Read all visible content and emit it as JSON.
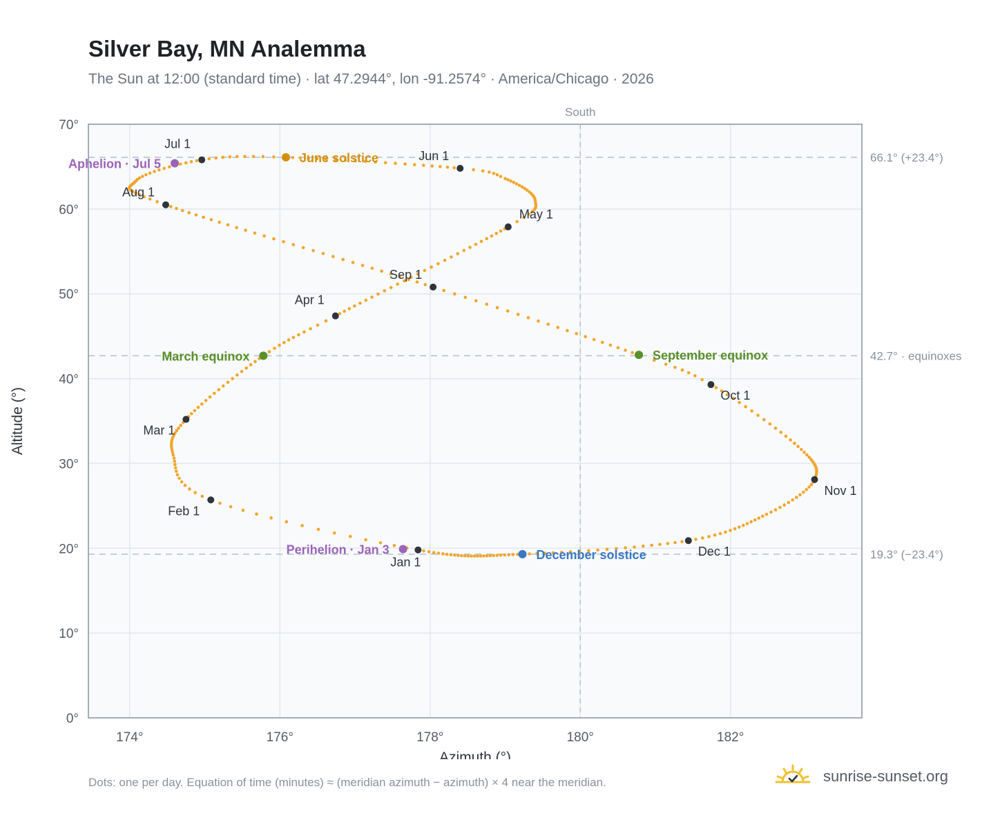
{
  "header": {
    "title": "Silver Bay, MN Analemma",
    "subtitle": "The Sun at 12:00 (standard time) · lat 47.2944°, lon -91.2574° · America/Chicago · 2026"
  },
  "footer": {
    "note": "Dots: one per day. Equation of time (minutes) ≈ (meridian azimuth − azimuth) × 4 near the meridian.",
    "brand": "sunrise-sunset.org",
    "brand_icon": "sun-check-icon"
  },
  "colors": {
    "path": "#f2a52c",
    "month_dot": "#2f343b",
    "solstice_june": "#d4900d",
    "equinox": "#5a8f29",
    "solstice_december": "#3a78c2",
    "apsis": "#9b64b8",
    "plot_bg": "#f8fafc",
    "grid": "#e3e7ec",
    "frame": "#9aa5b3",
    "ref_line": "#b4bfca"
  },
  "chart_data": {
    "type": "scatter",
    "xlabel": "Azimuth (°)",
    "ylabel": "Altitude (°)",
    "xlim": [
      173.45,
      183.75
    ],
    "ylim": [
      0,
      70
    ],
    "xticks": [
      174,
      176,
      178,
      180,
      182
    ],
    "xtick_labels": [
      "174°",
      "176°",
      "178°",
      "180°",
      "182°"
    ],
    "yticks": [
      0,
      10,
      20,
      30,
      40,
      50,
      60,
      70
    ],
    "ytick_labels": [
      "0°",
      "10°",
      "20°",
      "30°",
      "40°",
      "50°",
      "60°",
      "70°"
    ],
    "grid": true,
    "meridian": {
      "azimuth": 180,
      "label": "South"
    },
    "reference_lines": [
      {
        "altitude": 66.1,
        "label": "66.1° (+23.4°)"
      },
      {
        "altitude": 42.7,
        "label": "42.7° · equinoxes"
      },
      {
        "altitude": 19.3,
        "label": "19.3° (−23.4°)"
      }
    ],
    "path_anchors": [
      [
        17.0,
        177.84,
        19.8
      ],
      [
        32.0,
        175.08,
        25.7
      ],
      [
        45.0,
        174.58,
        31.0
      ],
      [
        60.0,
        174.75,
        35.2
      ],
      [
        79.0,
        175.78,
        42.7
      ],
      [
        91.0,
        176.74,
        47.4
      ],
      [
        121.0,
        179.04,
        57.9
      ],
      [
        131.0,
        179.4,
        61.0
      ],
      [
        145.0,
        179.0,
        63.6
      ],
      [
        152.0,
        178.4,
        64.8
      ],
      [
        172.0,
        176.08,
        66.1
      ],
      [
        182.0,
        174.96,
        65.8
      ],
      [
        197.0,
        174.08,
        63.3
      ],
      [
        213.0,
        174.48,
        60.5
      ],
      [
        244.0,
        178.04,
        50.8
      ],
      [
        266.0,
        180.78,
        42.8
      ],
      [
        274.0,
        181.74,
        39.3
      ],
      [
        290.0,
        182.9,
        32.0
      ],
      [
        305.0,
        183.12,
        28.1
      ],
      [
        319.0,
        182.48,
        24.0
      ],
      [
        335.0,
        181.44,
        20.9
      ],
      [
        355.0,
        179.23,
        19.3
      ],
      [
        382.0,
        177.84,
        19.8
      ]
    ],
    "path_anchor_note": "[day-of-year, azimuth, altitude]",
    "month_points": [
      {
        "label": "Jan 1",
        "az": 177.84,
        "alt": 19.8,
        "anchor": "start"
      },
      {
        "label": "Feb 1",
        "az": 175.08,
        "alt": 25.7,
        "anchor": "end"
      },
      {
        "label": "Mar 1",
        "az": 174.75,
        "alt": 35.2,
        "anchor": "end"
      },
      {
        "label": "Apr 1",
        "az": 176.74,
        "alt": 47.4,
        "anchor": "end"
      },
      {
        "label": "May 1",
        "az": 179.04,
        "alt": 57.9,
        "anchor": "start"
      },
      {
        "label": "Jun 1",
        "az": 178.4,
        "alt": 64.8,
        "anchor": "end"
      },
      {
        "label": "Jul 1",
        "az": 174.96,
        "alt": 65.8,
        "anchor": "end"
      },
      {
        "label": "Aug 1",
        "az": 174.48,
        "alt": 60.5,
        "anchor": "end"
      },
      {
        "label": "Sep 1",
        "az": 178.04,
        "alt": 50.8,
        "anchor": "end"
      },
      {
        "label": "Oct 1",
        "az": 181.74,
        "alt": 39.3,
        "anchor": "start"
      },
      {
        "label": "Nov 1",
        "az": 183.12,
        "alt": 28.1,
        "anchor": "start"
      },
      {
        "label": "Dec 1",
        "az": 181.44,
        "alt": 20.9,
        "anchor": "start"
      }
    ],
    "events": [
      {
        "label": "June solstice",
        "az": 176.08,
        "alt": 66.1,
        "kind": "solstice_june",
        "side": "right"
      },
      {
        "label": "March equinox",
        "az": 175.78,
        "alt": 42.7,
        "kind": "equinox",
        "side": "left"
      },
      {
        "label": "September equinox",
        "az": 180.78,
        "alt": 42.8,
        "kind": "equinox",
        "side": "right"
      },
      {
        "label": "December solstice",
        "az": 179.23,
        "alt": 19.3,
        "kind": "solstice_december",
        "side": "right"
      },
      {
        "label": "Aphelion · Jul 5",
        "az": 174.6,
        "alt": 65.4,
        "kind": "apsis",
        "side": "left"
      },
      {
        "label": "Perihelion · Jan 3",
        "az": 177.64,
        "alt": 19.9,
        "kind": "apsis",
        "side": "left"
      }
    ]
  }
}
